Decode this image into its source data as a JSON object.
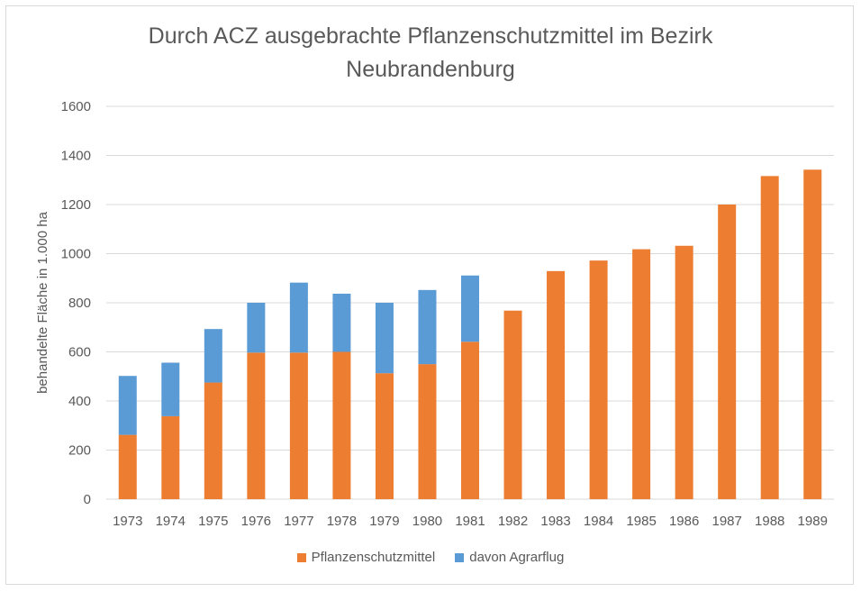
{
  "colors": {
    "pflanzenschutzmittel": "#ED7D31",
    "agrarflug": "#5B9BD5",
    "grid": "#d9d9d9",
    "text": "#595959"
  },
  "chart_data": {
    "type": "bar",
    "title_line1": "Durch ACZ ausgebrachte Pflanzenschutzmittel im Bezirk",
    "title_line2": "Neubrandenburg",
    "xlabel": "",
    "ylabel": "behandelte Fläche in 1.000 ha",
    "ylim": [
      0,
      1600
    ],
    "yticks": [
      "0",
      "200",
      "400",
      "600",
      "800",
      "1000",
      "1200",
      "1400",
      "1600"
    ],
    "grid": true,
    "legend_position": "bottom",
    "categories": [
      "1973",
      "1974",
      "1975",
      "1976",
      "1977",
      "1978",
      "1979",
      "1980",
      "1981",
      "1982",
      "1983",
      "1984",
      "1985",
      "1986",
      "1987",
      "1988",
      "1989"
    ],
    "series": [
      {
        "name": "Pflanzenschutzmittel",
        "values": [
          262,
          338,
          475,
          597,
          597,
          600,
          513,
          550,
          641,
          768,
          929,
          972,
          1018,
          1032,
          1200,
          1316,
          1342
        ]
      },
      {
        "name": "davon Agrarflug",
        "values": [
          240,
          218,
          218,
          203,
          285,
          237,
          287,
          302,
          270,
          0,
          0,
          0,
          0,
          0,
          0,
          0,
          0
        ]
      }
    ]
  }
}
